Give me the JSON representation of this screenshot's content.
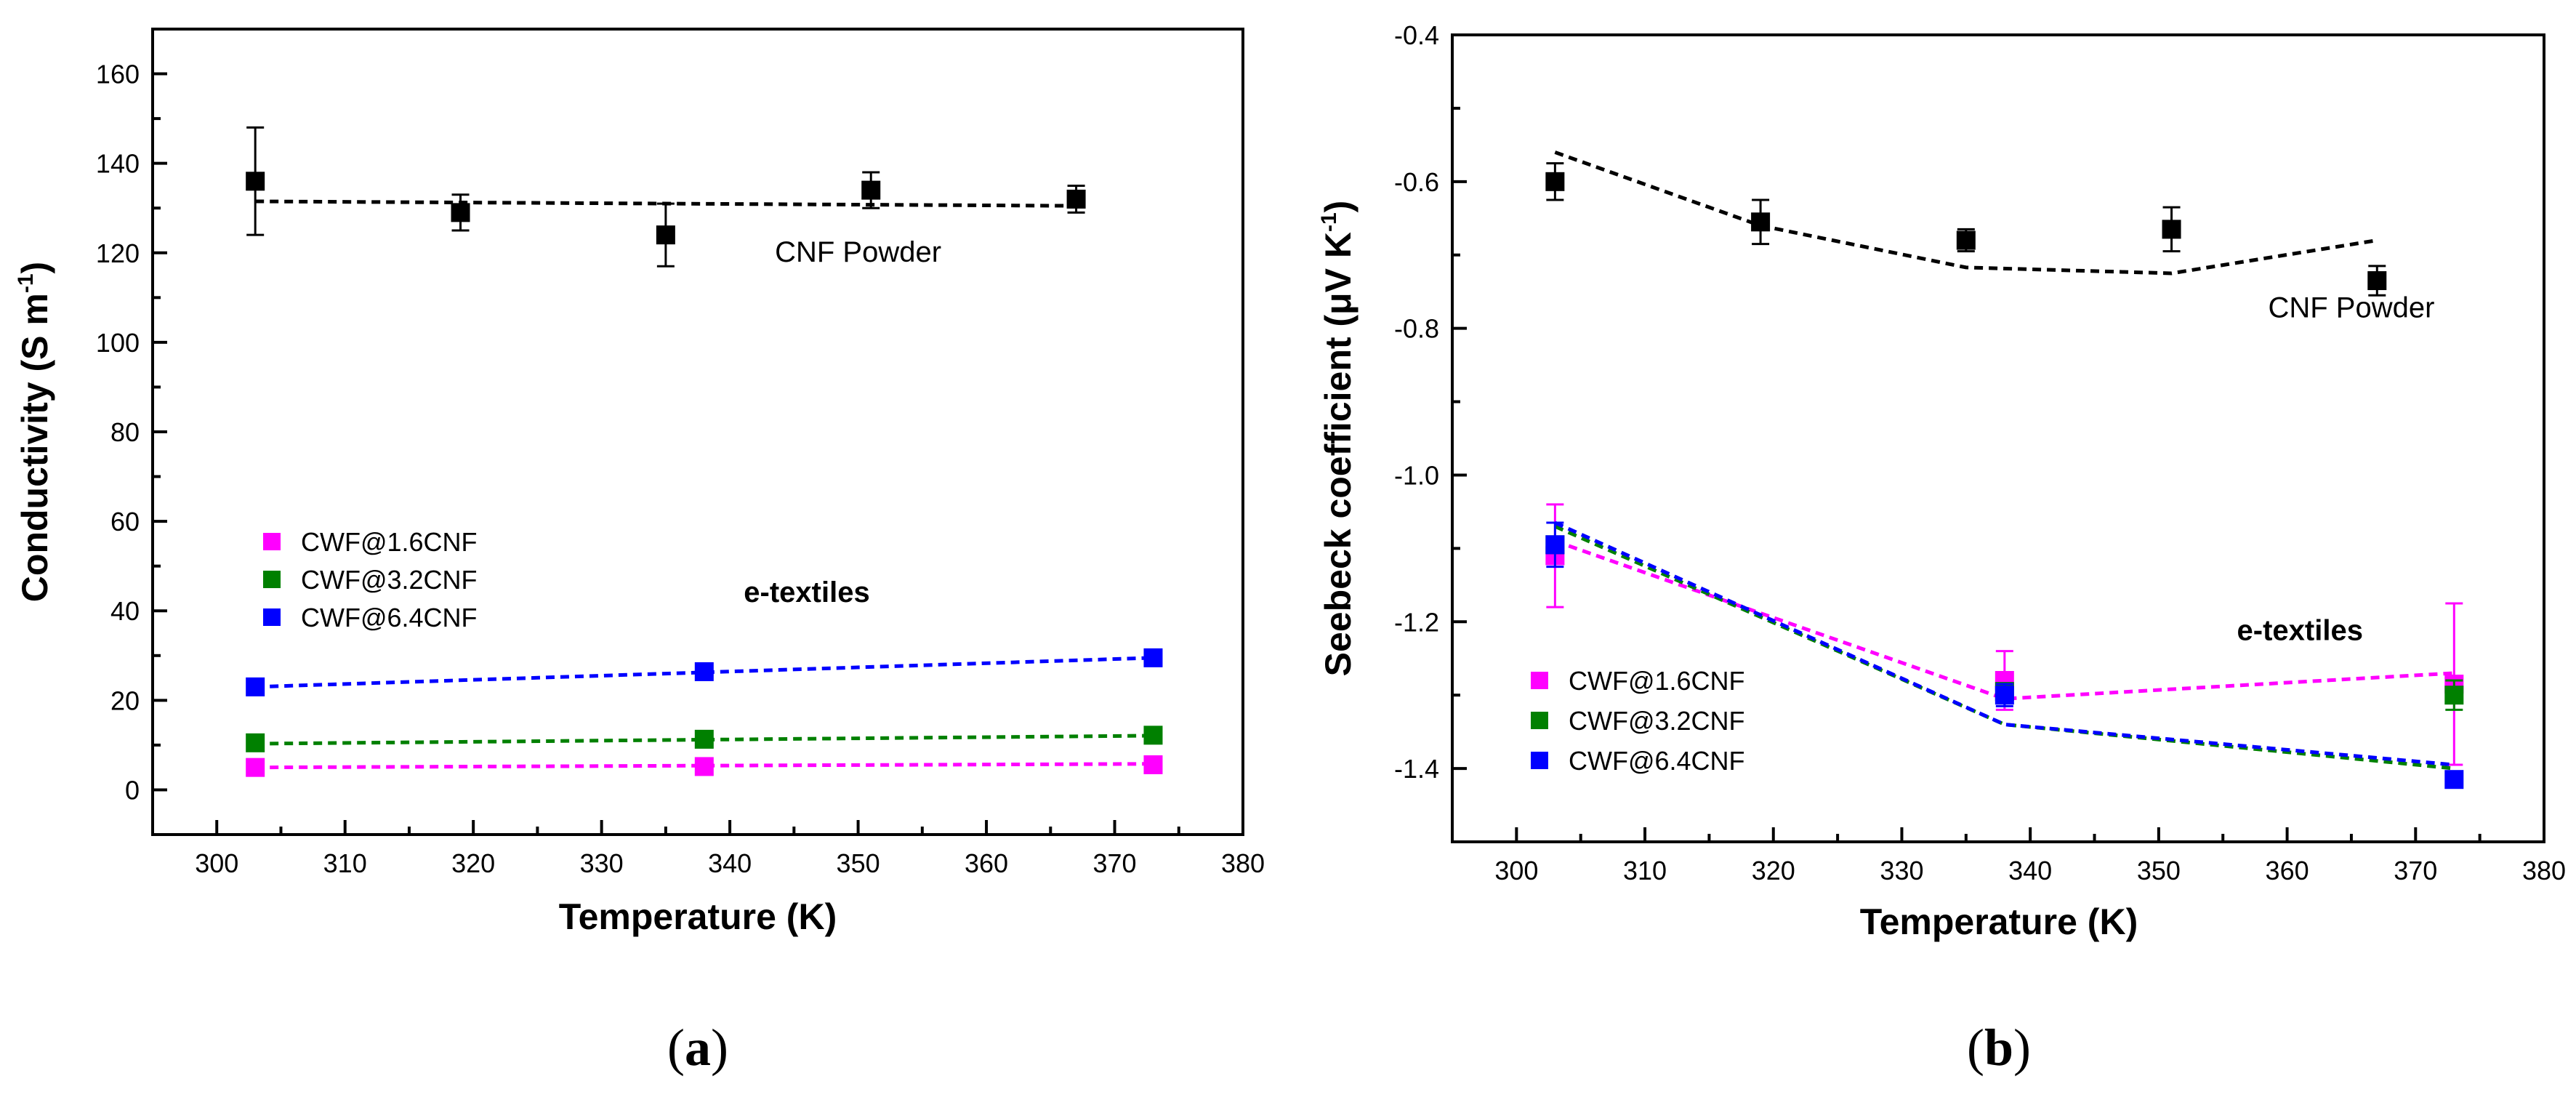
{
  "chart_data": [
    {
      "panel": "(a)",
      "panel_letter": "a",
      "type": "scatter",
      "xlabel": "Temperature (K)",
      "ylabel_main": "Conductivity (S m",
      "ylabel_sup": "-1",
      "ylabel_close": ")",
      "xlim": [
        295,
        380
      ],
      "ylim": [
        -10,
        170
      ],
      "xticks": [
        300,
        310,
        320,
        330,
        340,
        350,
        360,
        370,
        380
      ],
      "yticks": [
        0,
        20,
        40,
        60,
        80,
        100,
        120,
        140,
        160
      ],
      "annotations": [
        {
          "text": "CNF Powder",
          "at": [
            350,
            118
          ],
          "weight": "normal"
        },
        {
          "text": "e-textiles",
          "at": [
            346,
            42
          ],
          "weight": "bold"
        }
      ],
      "legend": [
        "CWF@1.6CNF",
        "CWF@3.2CNF",
        "CWF@6.4CNF"
      ],
      "series": [
        {
          "name": "CNF Powder",
          "color": "#000000",
          "in_legend": false,
          "points": [
            [
              303,
              136,
              12
            ],
            [
              319,
              129,
              4
            ],
            [
              335,
              124,
              7
            ],
            [
              351,
              134,
              4
            ],
            [
              367,
              132,
              3
            ]
          ],
          "fit": [
            [
              303,
              131.5
            ],
            [
              367,
              130.5
            ]
          ]
        },
        {
          "name": "CWF@1.6CNF",
          "color": "#ff00ff",
          "in_legend": true,
          "points": [
            [
              303,
              5.0,
              0
            ],
            [
              338,
              5.2,
              0
            ],
            [
              373,
              5.6,
              0
            ]
          ],
          "fit": [
            [
              303,
              5.0
            ],
            [
              373,
              5.8
            ]
          ]
        },
        {
          "name": "CWF@3.2CNF",
          "color": "#008000",
          "in_legend": true,
          "points": [
            [
              303,
              10.5,
              0
            ],
            [
              338,
              11.3,
              0
            ],
            [
              373,
              12.2,
              0
            ]
          ],
          "fit": [
            [
              303,
              10.3
            ],
            [
              373,
              12.1
            ]
          ]
        },
        {
          "name": "CWF@6.4CNF",
          "color": "#0000ff",
          "in_legend": true,
          "points": [
            [
              303,
              23.0,
              0
            ],
            [
              338,
              26.4,
              0
            ],
            [
              373,
              29.5,
              0
            ]
          ],
          "fit": [
            [
              303,
              23.0
            ],
            [
              373,
              29.5
            ]
          ]
        }
      ]
    },
    {
      "panel": "(b)",
      "panel_letter": "b",
      "type": "scatter",
      "xlabel": "Temperature (K)",
      "ylabel_main": "Seebeck coefficient (μV K",
      "ylabel_sup": "-1",
      "ylabel_close": ")",
      "xlim": [
        295,
        380
      ],
      "ylim": [
        -1.5,
        -0.4
      ],
      "xticks": [
        300,
        310,
        320,
        330,
        340,
        350,
        360,
        370,
        380
      ],
      "yticks": [
        -1.4,
        -1.2,
        -1.0,
        -0.8,
        -0.6,
        -0.4
      ],
      "annotations": [
        {
          "text": "CNF Powder",
          "at": [
            365,
            -0.785
          ],
          "weight": "normal"
        },
        {
          "text": "e-textiles",
          "at": [
            361,
            -1.225
          ],
          "weight": "bold"
        }
      ],
      "legend": [
        "CWF@1.6CNF",
        "CWF@3.2CNF",
        "CWF@6.4CNF"
      ],
      "series": [
        {
          "name": "CNF Powder",
          "color": "#000000",
          "in_legend": false,
          "points": [
            [
              303,
              -0.6,
              0.025
            ],
            [
              319,
              -0.655,
              0.03
            ],
            [
              335,
              -0.68,
              0.015
            ],
            [
              351,
              -0.665,
              0.03
            ],
            [
              367,
              -0.735,
              0.02
            ]
          ],
          "fit": [
            [
              303,
              -0.56
            ],
            [
              319,
              -0.66
            ],
            [
              335,
              -0.717
            ],
            [
              351,
              -0.725
            ],
            [
              367,
              -0.68
            ]
          ]
        },
        {
          "name": "CWF@1.6CNF",
          "color": "#ff00ff",
          "in_legend": true,
          "points": [
            [
              303,
              -1.11,
              0.07
            ],
            [
              338,
              -1.28,
              0.04
            ],
            [
              373,
              -1.285,
              0.11
            ]
          ],
          "fit": [
            [
              303,
              -1.09
            ],
            [
              338,
              -1.305
            ],
            [
              373,
              -1.27
            ]
          ]
        },
        {
          "name": "CWF@3.2CNF",
          "color": "#008000",
          "in_legend": true,
          "points": [
            [
              303,
              -1.095,
              0
            ],
            [
              338,
              -1.295,
              0
            ],
            [
              373,
              -1.3,
              0.02
            ]
          ],
          "fit": [
            [
              303,
              -1.07
            ],
            [
              338,
              -1.34
            ],
            [
              373,
              -1.4
            ]
          ]
        },
        {
          "name": "CWF@6.4CNF",
          "color": "#0000ff",
          "in_legend": true,
          "points": [
            [
              303,
              -1.095,
              0.03
            ],
            [
              338,
              -1.3,
              0.015
            ],
            [
              373,
              -1.415,
              0
            ]
          ],
          "fit": [
            [
              303,
              -1.065
            ],
            [
              338,
              -1.34
            ],
            [
              373,
              -1.395
            ]
          ]
        }
      ]
    }
  ]
}
